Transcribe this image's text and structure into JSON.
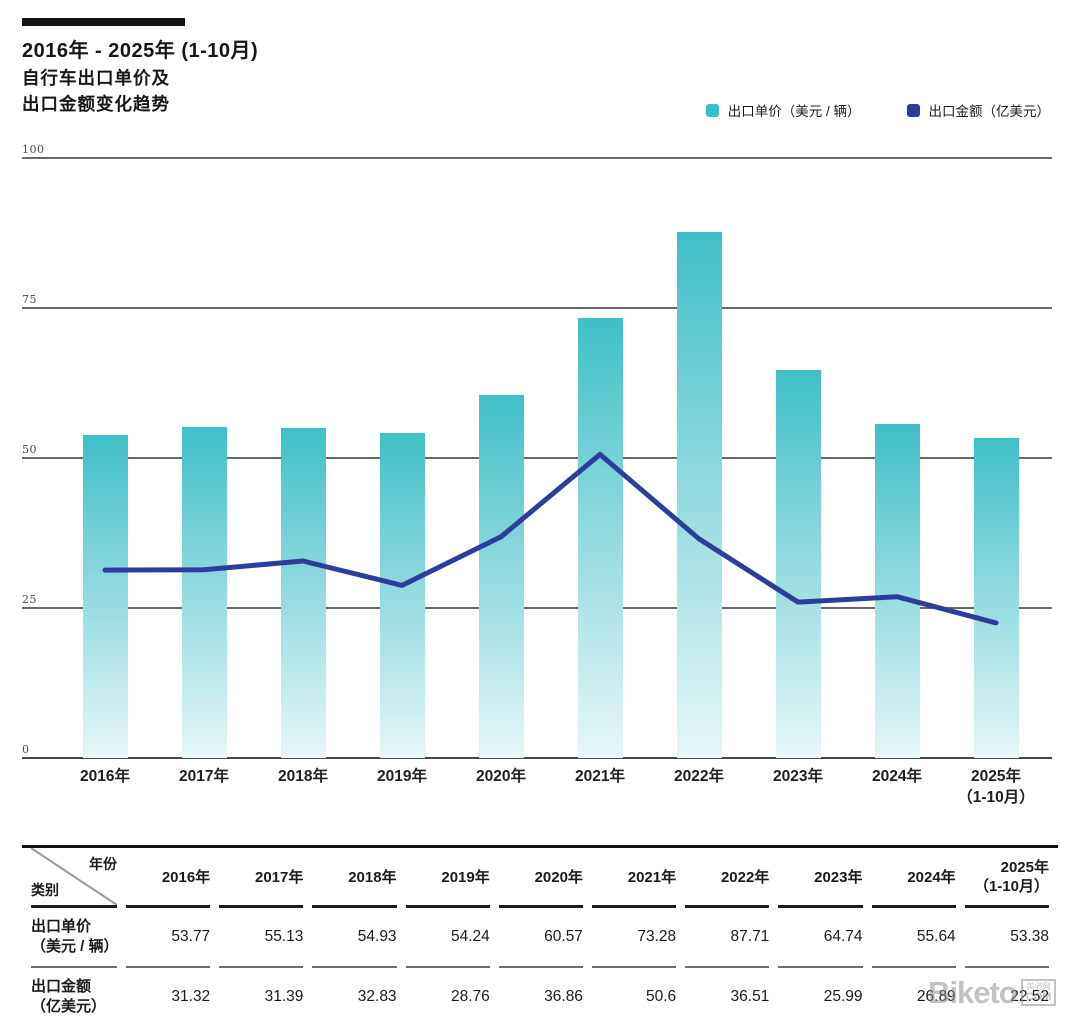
{
  "header": {
    "title_line1": "2016年 - 2025年 (1-10月)",
    "title_line2": "自行车出口单价及",
    "title_line3": "出口金额变化趋势"
  },
  "legend": [
    {
      "label": "出口单价（美元 / 辆）",
      "color": "#38bfc4",
      "marker": "bar-swatch"
    },
    {
      "label": "出口金额（亿美元）",
      "color": "#2b3d9d",
      "marker": "line-swatch"
    }
  ],
  "colors": {
    "bar_top": "#3fc0c6",
    "bar_bottom": "#e7f6f8",
    "line": "#2b3d9d",
    "grid": "#686868",
    "axis": "#474747"
  },
  "chart_data": {
    "type": "bar+line",
    "title": "2016年-2025年(1-10月) 自行车出口单价及出口金额变化趋势",
    "categories": [
      "2016年",
      "2017年",
      "2018年",
      "2019年",
      "2020年",
      "2021年",
      "2022年",
      "2023年",
      "2024年",
      "2025年"
    ],
    "last_category_note": "（1-10月）",
    "series": [
      {
        "name": "出口单价（美元 / 辆）",
        "type": "bar",
        "values": [
          53.77,
          55.13,
          54.93,
          54.24,
          60.57,
          73.28,
          87.71,
          64.74,
          55.64,
          53.38
        ]
      },
      {
        "name": "出口金额（亿美元）",
        "type": "line",
        "values": [
          31.32,
          31.39,
          32.83,
          28.76,
          36.86,
          50.6,
          36.51,
          25.99,
          26.89,
          22.52
        ]
      }
    ],
    "ylim": [
      0,
      100
    ],
    "yticks": [
      0,
      25,
      50,
      75,
      100
    ],
    "grid": true,
    "legend_position": "top-right"
  },
  "table": {
    "corner_top_right": "年份",
    "corner_bottom_left": "类别",
    "columns": [
      "2016年",
      "2017年",
      "2018年",
      "2019年",
      "2020年",
      "2021年",
      "2022年",
      "2023年",
      "2024年",
      "2025年|（1-10月）"
    ],
    "rows": [
      {
        "label": "出口单价",
        "label2": "（美元 / 辆）",
        "values": [
          "53.77",
          "55.13",
          "54.93",
          "54.24",
          "60.57",
          "73.28",
          "87.71",
          "64.74",
          "55.64",
          "53.38"
        ]
      },
      {
        "label": "出口金额",
        "label2": "（亿美元）",
        "values": [
          "31.32",
          "31.39",
          "32.83",
          "28.76",
          "36.86",
          "50.6",
          "36.51",
          "25.99",
          "26.89",
          "22.52"
        ]
      }
    ]
  },
  "watermark": {
    "text": "Biketo",
    "box_line1": "美骑网",
    "box_line2": "COM"
  }
}
